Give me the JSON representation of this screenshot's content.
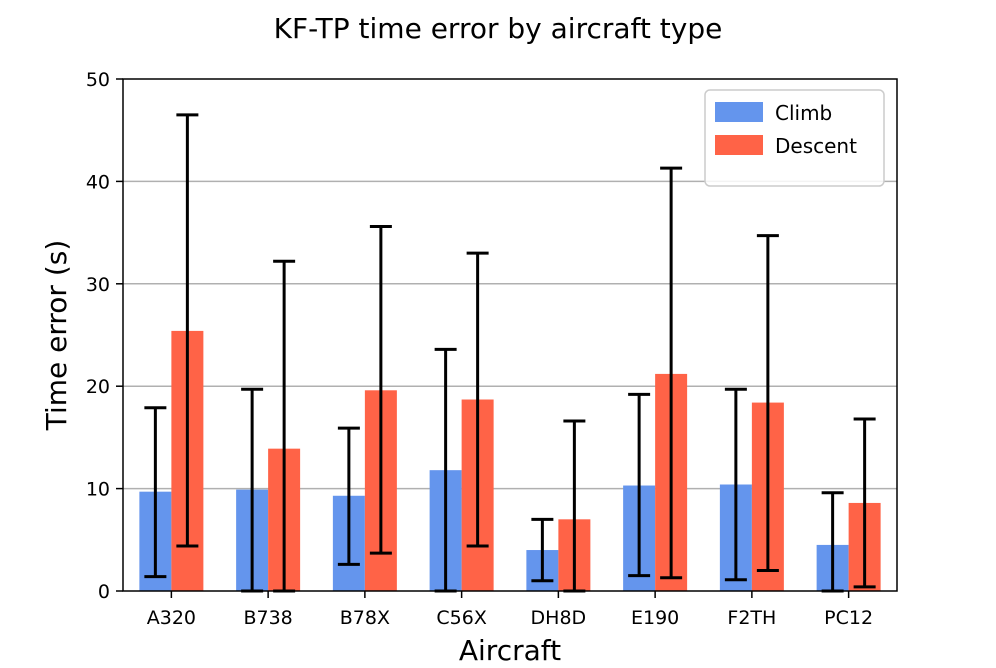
{
  "chart_data": {
    "type": "bar",
    "title": "KF-TP time error by aircraft type",
    "xlabel": "Aircraft",
    "ylabel": "Time error (s)",
    "ylim": [
      0,
      50
    ],
    "yticks": [
      0,
      10,
      20,
      30,
      40,
      50
    ],
    "grid": "horizontal",
    "legend_position": "top-right",
    "categories": [
      "A320",
      "B738",
      "B78X",
      "C56X",
      "DH8D",
      "E190",
      "F2TH",
      "PC12"
    ],
    "series": [
      {
        "name": "Climb",
        "color": "#6495ED",
        "values": [
          9.7,
          9.9,
          9.3,
          11.8,
          4.0,
          10.3,
          10.4,
          4.5
        ],
        "error_low": [
          1.4,
          0.0,
          2.6,
          0.0,
          1.0,
          1.5,
          1.1,
          0.0
        ],
        "error_high": [
          17.9,
          19.7,
          15.9,
          23.6,
          7.0,
          19.2,
          19.7,
          9.6
        ]
      },
      {
        "name": "Descent",
        "color": "#FF6347",
        "values": [
          25.4,
          13.9,
          19.6,
          18.7,
          7.0,
          21.2,
          18.4,
          8.6
        ],
        "error_low": [
          4.4,
          0.0,
          3.7,
          4.4,
          0.0,
          1.3,
          2.0,
          0.4
        ],
        "error_high": [
          46.5,
          32.2,
          35.6,
          33.0,
          16.6,
          41.3,
          34.7,
          16.8
        ]
      }
    ]
  }
}
